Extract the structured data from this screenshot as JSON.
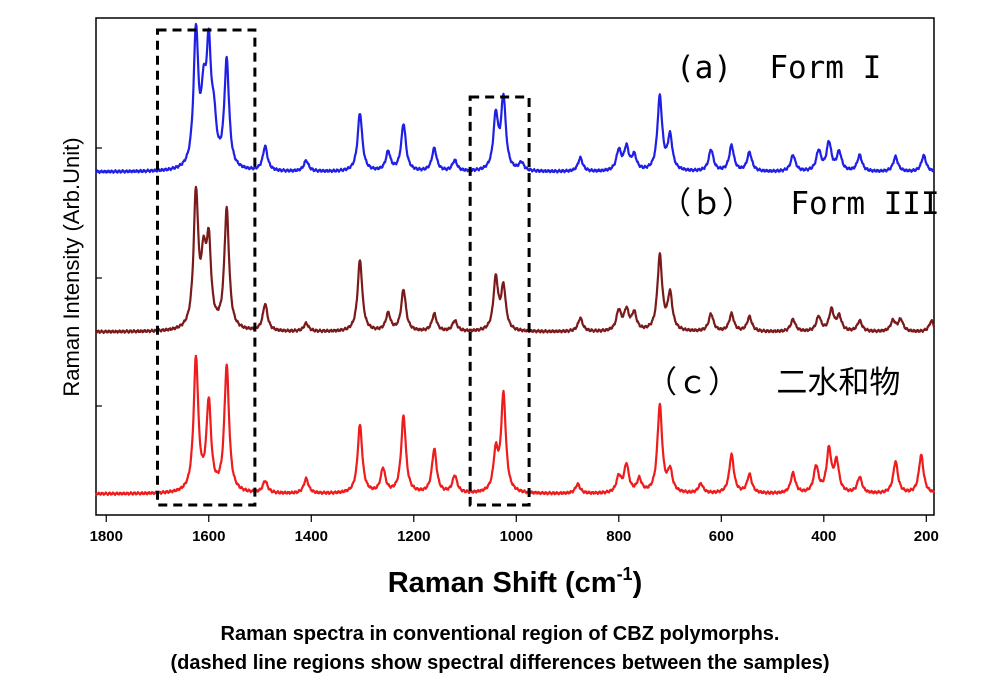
{
  "chart_data": {
    "type": "line",
    "xlabel": "Raman Shift (cm",
    "xlabel_sup": "-1",
    "xlabel_end": ")",
    "ylabel": "Raman Intensity (Arb.Unit)",
    "x_reversed": true,
    "xlim": [
      1820,
      185
    ],
    "xticks": [
      1800,
      1600,
      1400,
      1200,
      1000,
      800,
      600,
      400,
      200
    ],
    "x_tick_labels": [
      "1800",
      "1600",
      "1400",
      "1200",
      "1000",
      "800",
      "600",
      "400",
      "200"
    ],
    "y_ticks_labeled": false,
    "highlight_regions": [
      {
        "x_from": 1700,
        "x_to": 1510,
        "style": "dashed box"
      },
      {
        "x_from": 1090,
        "x_to": 975,
        "style": "dashed box"
      }
    ],
    "series": [
      {
        "name": "(a)  Form I",
        "color": "#1f1fe6",
        "baseline": 0,
        "peaks": [
          {
            "x": 1625,
            "y": 100
          },
          {
            "x": 1610,
            "y": 45
          },
          {
            "x": 1600,
            "y": 82
          },
          {
            "x": 1590,
            "y": 30
          },
          {
            "x": 1565,
            "y": 80
          },
          {
            "x": 1490,
            "y": 18
          },
          {
            "x": 1410,
            "y": 8
          },
          {
            "x": 1305,
            "y": 43
          },
          {
            "x": 1250,
            "y": 14
          },
          {
            "x": 1220,
            "y": 35
          },
          {
            "x": 1160,
            "y": 17
          },
          {
            "x": 1120,
            "y": 8
          },
          {
            "x": 1040,
            "y": 40
          },
          {
            "x": 1025,
            "y": 53
          },
          {
            "x": 990,
            "y": 6
          },
          {
            "x": 875,
            "y": 10
          },
          {
            "x": 800,
            "y": 15
          },
          {
            "x": 785,
            "y": 17
          },
          {
            "x": 770,
            "y": 11
          },
          {
            "x": 720,
            "y": 55
          },
          {
            "x": 700,
            "y": 25
          },
          {
            "x": 620,
            "y": 16
          },
          {
            "x": 580,
            "y": 19
          },
          {
            "x": 545,
            "y": 14
          },
          {
            "x": 460,
            "y": 12
          },
          {
            "x": 410,
            "y": 15
          },
          {
            "x": 390,
            "y": 21
          },
          {
            "x": 370,
            "y": 14
          },
          {
            "x": 330,
            "y": 12
          },
          {
            "x": 260,
            "y": 11
          },
          {
            "x": 205,
            "y": 12
          }
        ]
      },
      {
        "name": "（ｂ）  Form III",
        "color": "#7a1a1a",
        "baseline": 0,
        "peaks": [
          {
            "x": 1625,
            "y": 100
          },
          {
            "x": 1610,
            "y": 45
          },
          {
            "x": 1600,
            "y": 60
          },
          {
            "x": 1565,
            "y": 90
          },
          {
            "x": 1490,
            "y": 20
          },
          {
            "x": 1410,
            "y": 6
          },
          {
            "x": 1305,
            "y": 53
          },
          {
            "x": 1250,
            "y": 13
          },
          {
            "x": 1220,
            "y": 31
          },
          {
            "x": 1160,
            "y": 13
          },
          {
            "x": 1120,
            "y": 8
          },
          {
            "x": 1040,
            "y": 39
          },
          {
            "x": 1025,
            "y": 32
          },
          {
            "x": 875,
            "y": 10
          },
          {
            "x": 800,
            "y": 15
          },
          {
            "x": 785,
            "y": 15
          },
          {
            "x": 770,
            "y": 13
          },
          {
            "x": 720,
            "y": 56
          },
          {
            "x": 700,
            "y": 27
          },
          {
            "x": 620,
            "y": 13
          },
          {
            "x": 580,
            "y": 13
          },
          {
            "x": 545,
            "y": 11
          },
          {
            "x": 460,
            "y": 9
          },
          {
            "x": 410,
            "y": 11
          },
          {
            "x": 385,
            "y": 16
          },
          {
            "x": 370,
            "y": 11
          },
          {
            "x": 330,
            "y": 8
          },
          {
            "x": 265,
            "y": 8
          },
          {
            "x": 250,
            "y": 9
          },
          {
            "x": 190,
            "y": 8
          }
        ]
      },
      {
        "name": "（ｃ）  二水和物",
        "color": "#ee1c1c",
        "baseline": 0,
        "peaks": [
          {
            "x": 1625,
            "y": 100
          },
          {
            "x": 1600,
            "y": 66
          },
          {
            "x": 1565,
            "y": 95
          },
          {
            "x": 1490,
            "y": 9
          },
          {
            "x": 1410,
            "y": 11
          },
          {
            "x": 1305,
            "y": 51
          },
          {
            "x": 1260,
            "y": 18
          },
          {
            "x": 1220,
            "y": 58
          },
          {
            "x": 1160,
            "y": 33
          },
          {
            "x": 1120,
            "y": 13
          },
          {
            "x": 1040,
            "y": 29
          },
          {
            "x": 1025,
            "y": 73
          },
          {
            "x": 880,
            "y": 7
          },
          {
            "x": 800,
            "y": 12
          },
          {
            "x": 785,
            "y": 21
          },
          {
            "x": 760,
            "y": 10
          },
          {
            "x": 720,
            "y": 66
          },
          {
            "x": 700,
            "y": 16
          },
          {
            "x": 640,
            "y": 7
          },
          {
            "x": 580,
            "y": 29
          },
          {
            "x": 545,
            "y": 14
          },
          {
            "x": 460,
            "y": 15
          },
          {
            "x": 415,
            "y": 20
          },
          {
            "x": 390,
            "y": 32
          },
          {
            "x": 375,
            "y": 23
          },
          {
            "x": 330,
            "y": 12
          },
          {
            "x": 260,
            "y": 24
          },
          {
            "x": 210,
            "y": 29
          }
        ]
      }
    ]
  },
  "caption": {
    "line1": "Raman spectra in conventional region of CBZ polymorphs.",
    "line2": "(dashed line regions show spectral differences between the samples)"
  }
}
